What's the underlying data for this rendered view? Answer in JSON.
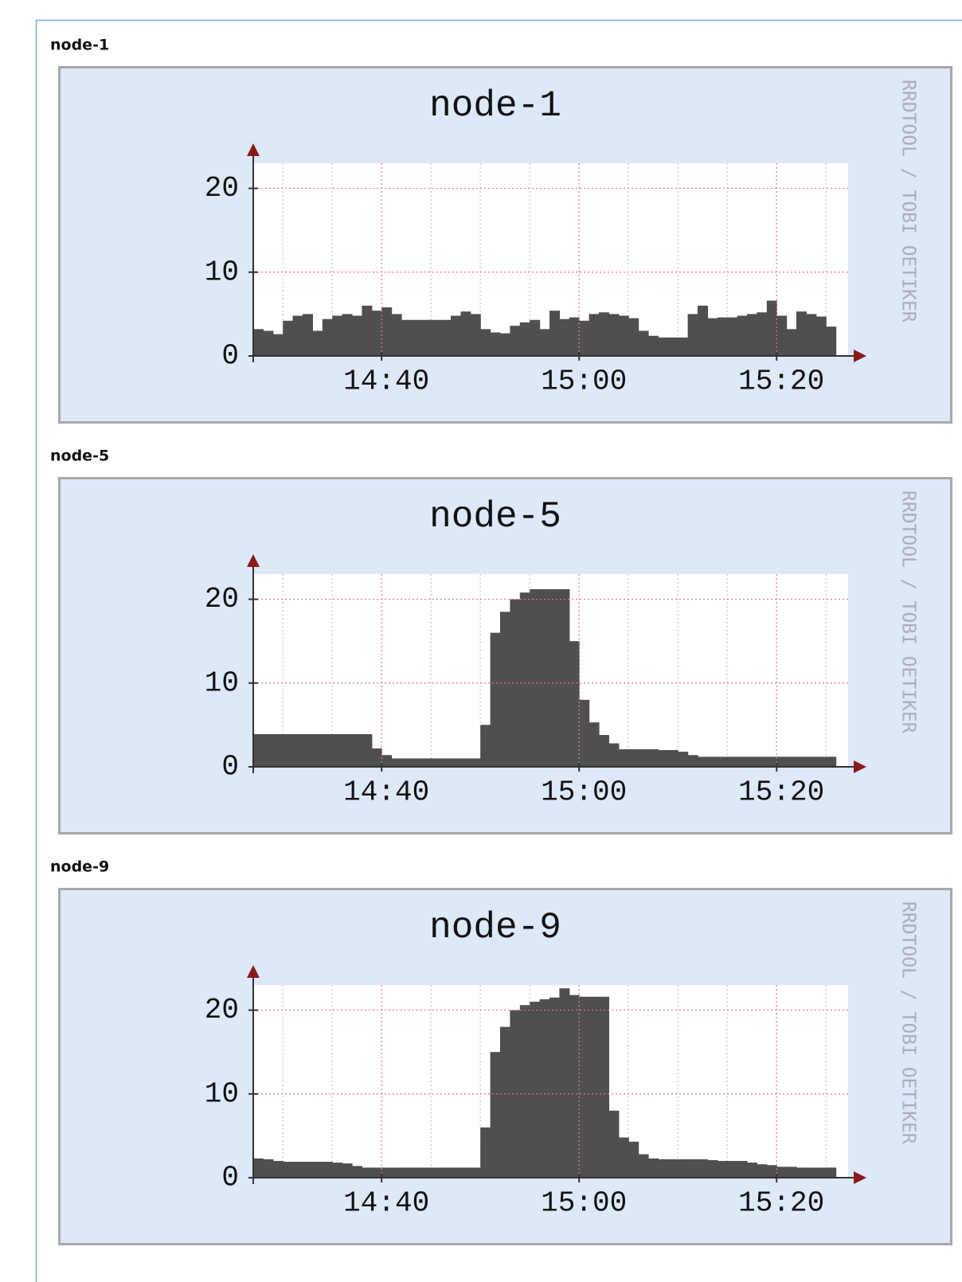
{
  "chart_data": [
    {
      "type": "bar",
      "heading": "node-1",
      "title": "node-1",
      "watermark": "RRDTOOL / TOBI OETIKER",
      "categories": [
        null,
        null,
        null,
        null,
        null,
        null,
        null,
        null,
        null,
        null,
        null,
        null,
        null,
        "14:40",
        null,
        null,
        null,
        null,
        null,
        null,
        null,
        null,
        null,
        null,
        null,
        null,
        null,
        null,
        null,
        null,
        null,
        null,
        null,
        "15:00",
        null,
        null,
        null,
        null,
        null,
        null,
        null,
        null,
        null,
        null,
        null,
        null,
        null,
        null,
        null,
        null,
        null,
        null,
        null,
        "15:20",
        null,
        null,
        null,
        null,
        null
      ],
      "values": [
        3.2,
        3,
        2.6,
        4.2,
        4.8,
        5,
        3,
        4.4,
        4.8,
        5,
        4.8,
        6,
        5.4,
        5.8,
        5,
        4.3,
        4.3,
        4.3,
        4.3,
        4.3,
        4.8,
        5.3,
        5,
        3.2,
        2.8,
        2.7,
        3.6,
        4,
        4.3,
        3.2,
        5.4,
        4.4,
        4.6,
        4.2,
        5,
        5.2,
        5,
        4.8,
        4.5,
        3,
        2.4,
        2.2,
        2.2,
        2.2,
        5,
        6,
        4.5,
        4.6,
        4.6,
        4.8,
        5,
        5.2,
        6.6,
        4.8,
        3.2,
        5.3,
        5,
        4.7,
        3.5
      ],
      "color": "#4f4f4f",
      "ylim": [
        0,
        23
      ],
      "yticks": [
        0,
        10,
        20
      ],
      "grid": true
    },
    {
      "type": "bar",
      "heading": "node-5",
      "title": "node-5",
      "watermark": "RRDTOOL / TOBI OETIKER",
      "categories": [
        null,
        null,
        null,
        null,
        null,
        null,
        null,
        null,
        null,
        null,
        null,
        null,
        null,
        "14:40",
        null,
        null,
        null,
        null,
        null,
        null,
        null,
        null,
        null,
        null,
        null,
        null,
        null,
        null,
        null,
        null,
        null,
        null,
        null,
        "15:00",
        null,
        null,
        null,
        null,
        null,
        null,
        null,
        null,
        null,
        null,
        null,
        null,
        null,
        null,
        null,
        null,
        null,
        null,
        null,
        "15:20",
        null,
        null,
        null,
        null,
        null
      ],
      "values": [
        3.9,
        3.9,
        3.9,
        3.9,
        3.9,
        3.9,
        3.9,
        3.9,
        3.9,
        3.9,
        3.9,
        3.9,
        2.2,
        1.4,
        1,
        1,
        1,
        1,
        1,
        1,
        1,
        1,
        1,
        5,
        16,
        18.5,
        20,
        20.8,
        21.2,
        21.2,
        21.2,
        21.2,
        15,
        8,
        5.3,
        3.8,
        2.8,
        2.1,
        2.1,
        2.1,
        2.1,
        2,
        2,
        1.8,
        1.4,
        1.2,
        1.2,
        1.2,
        1.2,
        1.2,
        1.2,
        1.2,
        1.2,
        1.2,
        1.2,
        1.2,
        1.2,
        1.2,
        1.2
      ],
      "color": "#4f4f4f",
      "ylim": [
        0,
        23
      ],
      "yticks": [
        0,
        10,
        20
      ],
      "grid": true
    },
    {
      "type": "bar",
      "heading": "node-9",
      "title": "node-9",
      "watermark": "RRDTOOL / TOBI OETIKER",
      "categories": [
        null,
        null,
        null,
        null,
        null,
        null,
        null,
        null,
        null,
        null,
        null,
        null,
        null,
        "14:40",
        null,
        null,
        null,
        null,
        null,
        null,
        null,
        null,
        null,
        null,
        null,
        null,
        null,
        null,
        null,
        null,
        null,
        null,
        null,
        "15:00",
        null,
        null,
        null,
        null,
        null,
        null,
        null,
        null,
        null,
        null,
        null,
        null,
        null,
        null,
        null,
        null,
        null,
        null,
        null,
        "15:20",
        null,
        null,
        null,
        null,
        null
      ],
      "values": [
        2.3,
        2.2,
        2,
        1.9,
        1.9,
        1.9,
        1.9,
        1.9,
        1.8,
        1.7,
        1.4,
        1.2,
        1.2,
        1.2,
        1.2,
        1.2,
        1.2,
        1.2,
        1.2,
        1.2,
        1.2,
        1.2,
        1.2,
        6,
        15,
        18,
        20,
        20.6,
        21,
        21.3,
        21.5,
        22.6,
        21.8,
        21.6,
        21.6,
        21.6,
        8,
        4.8,
        4.3,
        2.8,
        2.3,
        2.2,
        2.2,
        2.2,
        2.2,
        2.2,
        2.1,
        2,
        2,
        2,
        1.8,
        1.6,
        1.5,
        1.3,
        1.3,
        1.2,
        1.2,
        1.2,
        1.2
      ],
      "color": "#4f4f4f",
      "ylim": [
        0,
        23
      ],
      "yticks": [
        0,
        10,
        20
      ],
      "grid": true
    }
  ]
}
